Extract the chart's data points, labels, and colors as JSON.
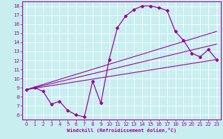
{
  "xlabel": "Windchill (Refroidissement éolien,°C)",
  "bg_color": "#c8eef0",
  "line_color": "#990099",
  "grid_color": "#ffffff",
  "ylim": [
    5.5,
    18.5
  ],
  "xlim": [
    -0.5,
    23.5
  ],
  "yticks": [
    6,
    7,
    8,
    9,
    10,
    11,
    12,
    13,
    14,
    15,
    16,
    17,
    18
  ],
  "xticks": [
    0,
    1,
    2,
    3,
    4,
    5,
    6,
    7,
    8,
    9,
    10,
    11,
    12,
    13,
    14,
    15,
    16,
    17,
    18,
    19,
    20,
    21,
    22,
    23
  ],
  "main_x": [
    0,
    1,
    2,
    3,
    4,
    5,
    6,
    7,
    8,
    9,
    10,
    11,
    12,
    13,
    14,
    15,
    16,
    17,
    18,
    19,
    20,
    21,
    22,
    23
  ],
  "main_y": [
    8.8,
    9.0,
    8.6,
    7.2,
    7.5,
    6.5,
    6.0,
    5.8,
    9.7,
    7.3,
    12.1,
    15.6,
    16.9,
    17.6,
    18.0,
    18.0,
    17.8,
    17.5,
    15.2,
    14.2,
    12.8,
    12.4,
    13.2,
    12.1
  ],
  "line2_x": [
    0,
    23
  ],
  "line2_y": [
    8.8,
    12.1
  ],
  "line3_x": [
    0,
    23
  ],
  "line3_y": [
    8.8,
    13.8
  ],
  "line4_x": [
    0,
    23
  ],
  "line4_y": [
    8.8,
    15.2
  ]
}
